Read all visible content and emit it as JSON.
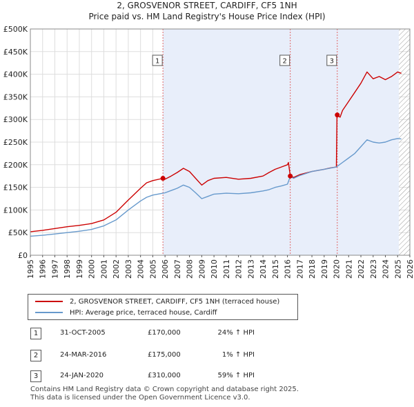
{
  "title_line1": "2, GROSVENOR STREET, CARDIFF, CF5 1NH",
  "title_line2": "Price paid vs. HM Land Registry's House Price Index (HPI)",
  "colors": {
    "property": "#cc0000",
    "hpi": "#6699cc",
    "shade": "#e8eefa",
    "marker_line": "#e06666",
    "hatch": "#999999"
  },
  "chart_data": {
    "type": "line",
    "xlim": [
      1995,
      2026
    ],
    "ylim": [
      0,
      500000
    ],
    "xticks": [
      "1995",
      "1996",
      "1997",
      "1998",
      "1999",
      "2000",
      "2001",
      "2002",
      "2003",
      "2004",
      "2005",
      "2006",
      "2007",
      "2008",
      "2009",
      "2010",
      "2011",
      "2012",
      "2013",
      "2014",
      "2015",
      "2016",
      "2017",
      "2018",
      "2019",
      "2020",
      "2021",
      "2022",
      "2023",
      "2024",
      "2025",
      "2026"
    ],
    "yticks": [
      {
        "value": 0,
        "label": "£0"
      },
      {
        "value": 50000,
        "label": "£50K"
      },
      {
        "value": 100000,
        "label": "£100K"
      },
      {
        "value": 150000,
        "label": "£150K"
      },
      {
        "value": 200000,
        "label": "£200K"
      },
      {
        "value": 250000,
        "label": "£250K"
      },
      {
        "value": 300000,
        "label": "£300K"
      },
      {
        "value": 350000,
        "label": "£350K"
      },
      {
        "value": 400000,
        "label": "£400K"
      },
      {
        "value": 450000,
        "label": "£450K"
      },
      {
        "value": 500000,
        "label": "£500K"
      }
    ],
    "shaded_from": 2005.83,
    "hatched_from": 2025.1,
    "series": [
      {
        "name": "2, GROSVENOR STREET, CARDIFF, CF5 1NH (terraced house)",
        "color": "#cc0000",
        "x": [
          1995,
          1996,
          1997,
          1998,
          1999,
          2000,
          2001,
          2002,
          2003,
          2004,
          2004.5,
          2005,
          2005.83,
          2006,
          2006.5,
          2007,
          2007.5,
          2008,
          2008.5,
          2009,
          2009.5,
          2010,
          2011,
          2012,
          2013,
          2014,
          2014.5,
          2015,
          2015.5,
          2016,
          2016.08,
          2016.23,
          2016.5,
          2017,
          2018,
          2019,
          2019.5,
          2020,
          2020.05,
          2020.3,
          2020.5,
          2021,
          2021.5,
          2022,
          2022.5,
          2023,
          2023.5,
          2024,
          2024.5,
          2025,
          2025.3
        ],
        "y": [
          52000,
          55000,
          59000,
          63000,
          66000,
          70000,
          78000,
          95000,
          122000,
          148000,
          160000,
          165000,
          170000,
          168000,
          175000,
          183000,
          192000,
          185000,
          170000,
          155000,
          165000,
          170000,
          172000,
          168000,
          170000,
          175000,
          183000,
          190000,
          195000,
          200000,
          205000,
          175000,
          172000,
          178000,
          185000,
          190000,
          193000,
          195000,
          310000,
          305000,
          320000,
          340000,
          360000,
          380000,
          405000,
          390000,
          395000,
          388000,
          395000,
          405000,
          402000
        ]
      },
      {
        "name": "HPI: Average price, terraced house, Cardiff",
        "color": "#6699cc",
        "x": [
          1995,
          1996,
          1997,
          1998,
          1999,
          2000,
          2001,
          2002,
          2003,
          2004,
          2004.5,
          2005,
          2005.83,
          2006,
          2006.5,
          2007,
          2007.5,
          2008,
          2008.5,
          2009,
          2009.5,
          2010,
          2011,
          2012,
          2013,
          2014,
          2014.5,
          2015,
          2015.5,
          2016,
          2016.23,
          2016.5,
          2017,
          2018,
          2019,
          2020,
          2020.5,
          2021,
          2021.5,
          2022,
          2022.5,
          2023,
          2023.5,
          2024,
          2024.5,
          2025,
          2025.3
        ],
        "y": [
          42000,
          44000,
          47000,
          50000,
          53000,
          57000,
          65000,
          78000,
          100000,
          120000,
          128000,
          133000,
          137000,
          138000,
          143000,
          148000,
          155000,
          150000,
          138000,
          125000,
          130000,
          135000,
          137000,
          136000,
          138000,
          142000,
          145000,
          150000,
          153000,
          157000,
          174000,
          170000,
          176000,
          185000,
          190000,
          195000,
          205000,
          215000,
          225000,
          240000,
          255000,
          250000,
          248000,
          250000,
          255000,
          258000,
          257000
        ]
      }
    ],
    "markers": [
      {
        "id": "1",
        "x": 2005.83,
        "y": 170000
      },
      {
        "id": "2",
        "x": 2016.23,
        "y": 175000
      },
      {
        "id": "3",
        "x": 2020.07,
        "y": 310000
      }
    ]
  },
  "legend": {
    "property": "2, GROSVENOR STREET, CARDIFF, CF5 1NH (terraced house)",
    "hpi": "HPI: Average price, terraced house, Cardiff"
  },
  "transactions": [
    {
      "num": "1",
      "date": "31-OCT-2005",
      "price": "£170,000",
      "hpi": "24% ↑ HPI"
    },
    {
      "num": "2",
      "date": "24-MAR-2016",
      "price": "£175,000",
      "hpi": "1% ↑ HPI"
    },
    {
      "num": "3",
      "date": "24-JAN-2020",
      "price": "£310,000",
      "hpi": "59% ↑ HPI"
    }
  ],
  "footer_line1": "Contains HM Land Registry data © Crown copyright and database right 2025.",
  "footer_line2": "This data is licensed under the Open Government Licence v3.0."
}
